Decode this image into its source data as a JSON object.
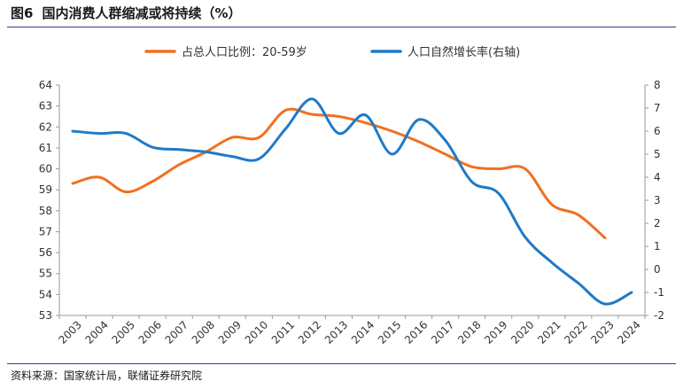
{
  "figure": {
    "label": "图6",
    "title": "国内消费人群缩减或将持续（%）",
    "source": "资料来源：国家统计局，联储证券研究院"
  },
  "chart_data": {
    "type": "line",
    "x": [
      "2003",
      "2004",
      "2005",
      "2006",
      "2007",
      "2008",
      "2009",
      "2010",
      "2011",
      "2012",
      "2013",
      "2014",
      "2015",
      "2016",
      "2017",
      "2018",
      "2019",
      "2020",
      "2021",
      "2022",
      "2023",
      "2024"
    ],
    "y_left_range": [
      53,
      64
    ],
    "y_left_ticks": [
      53,
      54,
      55,
      56,
      57,
      58,
      59,
      60,
      61,
      62,
      63,
      64
    ],
    "y_right_range": [
      -2,
      8
    ],
    "y_right_ticks": [
      -2,
      -1,
      0,
      1,
      2,
      3,
      4,
      5,
      6,
      7,
      8
    ],
    "legend_position": "top-center",
    "grid": false,
    "series": [
      {
        "name": "占总人口比例：20-59岁",
        "axis": "left",
        "color": "#f07020",
        "values": [
          59.3,
          59.6,
          58.9,
          59.4,
          60.2,
          60.8,
          61.5,
          61.5,
          62.8,
          62.6,
          62.5,
          62.2,
          61.8,
          61.3,
          60.7,
          60.1,
          60.0,
          60.0,
          58.3,
          57.8,
          56.7,
          null
        ]
      },
      {
        "name": "人口自然增长率(右轴)",
        "axis": "right",
        "color": "#1f7ac8",
        "values": [
          6.0,
          5.9,
          5.9,
          5.3,
          5.2,
          5.1,
          4.9,
          4.8,
          6.1,
          7.4,
          5.9,
          6.7,
          5.0,
          6.5,
          5.6,
          3.8,
          3.3,
          1.4,
          0.3,
          -0.6,
          -1.5,
          -1.0
        ]
      }
    ]
  }
}
